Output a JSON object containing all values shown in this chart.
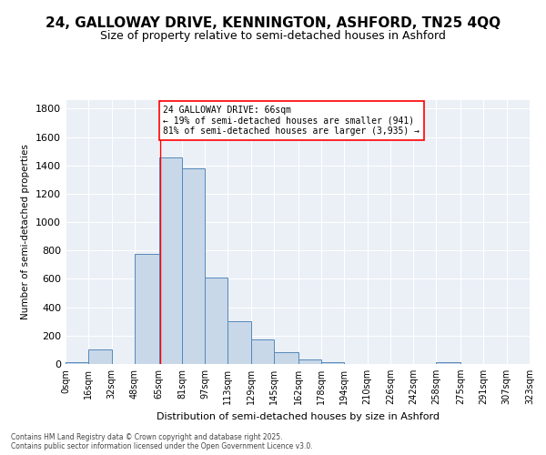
{
  "title": "24, GALLOWAY DRIVE, KENNINGTON, ASHFORD, TN25 4QQ",
  "subtitle": "Size of property relative to semi-detached houses in Ashford",
  "xlabel": "Distribution of semi-detached houses by size in Ashford",
  "ylabel": "Number of semi-detached properties",
  "bin_labels": [
    "0sqm",
    "16sqm",
    "32sqm",
    "48sqm",
    "65sqm",
    "81sqm",
    "97sqm",
    "113sqm",
    "129sqm",
    "145sqm",
    "162sqm",
    "178sqm",
    "194sqm",
    "210sqm",
    "226sqm",
    "242sqm",
    "258sqm",
    "275sqm",
    "291sqm",
    "307sqm",
    "323sqm"
  ],
  "bin_edges": [
    0,
    16,
    32,
    48,
    65,
    81,
    97,
    113,
    129,
    145,
    162,
    178,
    194,
    210,
    226,
    242,
    258,
    275,
    291,
    307,
    323
  ],
  "bar_heights": [
    15,
    100,
    0,
    775,
    1455,
    1380,
    610,
    300,
    170,
    85,
    30,
    15,
    0,
    0,
    0,
    0,
    15,
    0,
    0,
    0,
    0
  ],
  "bar_color": "#c8d8e8",
  "bar_edge_color": "#5588bb",
  "background_color": "#eaf0f6",
  "grid_color": "#ffffff",
  "vline_x": 66,
  "vline_color": "red",
  "annotation_text": "24 GALLOWAY DRIVE: 66sqm\n← 19% of semi-detached houses are smaller (941)\n81% of semi-detached houses are larger (3,935) →",
  "ylim": [
    0,
    1860
  ],
  "yticks": [
    0,
    200,
    400,
    600,
    800,
    1000,
    1200,
    1400,
    1600,
    1800
  ],
  "footer_text": "Contains HM Land Registry data © Crown copyright and database right 2025.\nContains public sector information licensed under the Open Government Licence v3.0.",
  "title_fontsize": 11,
  "subtitle_fontsize": 9,
  "annotation_fontsize": 7
}
